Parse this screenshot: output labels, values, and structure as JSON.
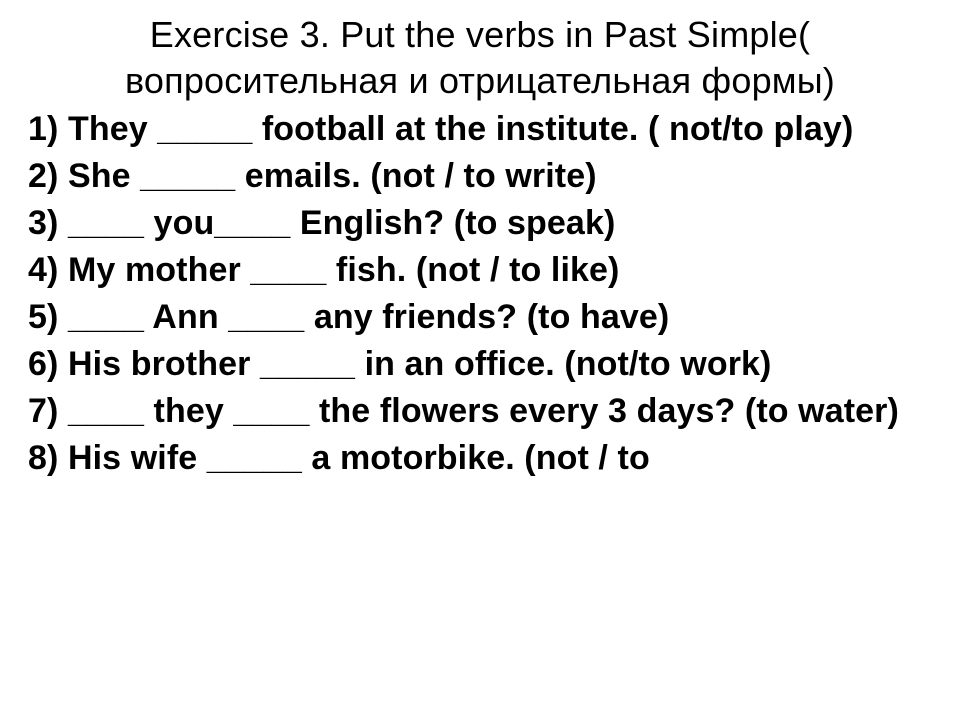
{
  "document": {
    "background_color": "#ffffff",
    "text_color": "#000000",
    "title": {
      "text": "Exercise 3. Put the verbs in Past Simple( вопросительная и отрицательная формы)",
      "font_size_pt": 27,
      "font_weight": 400,
      "align": "center"
    },
    "body": {
      "font_size_pt": 25,
      "font_weight": 700,
      "line_height": 1.38
    },
    "items": [
      "1) They _____ football at the institute. ( not/to play)",
      "2) She _____ emails. (not / to write)",
      "3) ____ you____ English? (to speak)",
      "4) My mother ____ fish. (not / to like)",
      "5) ____ Ann ____ any friends? (to have)",
      "6) His brother _____ in an office. (not/to work)",
      "7)  ____ they ____ the flowers every 3 days? (to water)",
      "8) His wife _____ a motorbike. (not / to"
    ]
  }
}
